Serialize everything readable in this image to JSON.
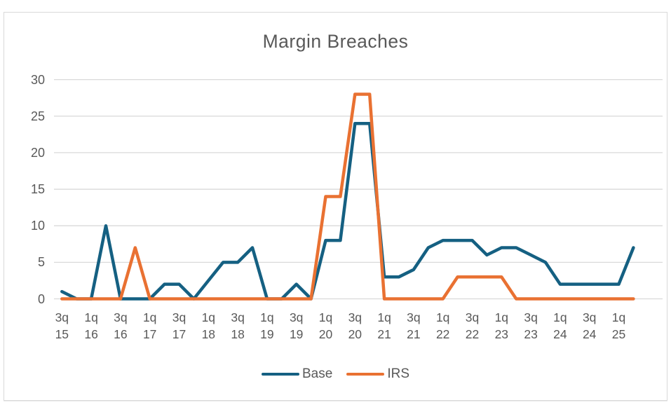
{
  "chart_data": {
    "type": "line",
    "title": "Margin Breaches",
    "categories": [
      "3q 15",
      "4q 15",
      "1q 16",
      "2q 16",
      "3q 16",
      "4q 16",
      "1q 17",
      "2q 17",
      "3q 17",
      "4q 17",
      "1q 18",
      "2q 18",
      "3q 18",
      "4q 18",
      "1q 19",
      "2q 19",
      "3q 19",
      "4q 19",
      "1q 20",
      "2q 20",
      "3q 20",
      "4q 20",
      "1q 21",
      "2q 21",
      "3q 21",
      "4q 21",
      "1q 22",
      "2q 22",
      "3q 22",
      "4q 22",
      "1q 23",
      "2q 23",
      "3q 23",
      "4q 23",
      "1q 24",
      "2q 24",
      "3q 24",
      "4q 24",
      "1q 25",
      "2q 25"
    ],
    "x_tick_labels": [
      "3q 15",
      "1q 16",
      "3q 16",
      "1q 17",
      "3q 17",
      "1q 18",
      "3q 18",
      "1q 19",
      "3q 19",
      "1q 20",
      "3q 20",
      "1q 21",
      "3q 21",
      "1q 22",
      "3q 22",
      "1q 23",
      "3q 23",
      "1q 24",
      "3q 24",
      "1q 25"
    ],
    "series": [
      {
        "name": "Base",
        "color": "#156082",
        "values": [
          1,
          0,
          0,
          10,
          0,
          0,
          0,
          2,
          2,
          0,
          2.5,
          5,
          5,
          7,
          0,
          0,
          2,
          0,
          8,
          8,
          24,
          24,
          3,
          3,
          4,
          7,
          8,
          8,
          8,
          6,
          7,
          7,
          6,
          5,
          2,
          2,
          2,
          2,
          2,
          7
        ]
      },
      {
        "name": "IRS",
        "color": "#E97132",
        "values": [
          0,
          0,
          0,
          0,
          0,
          7,
          0,
          0,
          0,
          0,
          0,
          0,
          0,
          0,
          0,
          0,
          0,
          0,
          14,
          14,
          28,
          28,
          0,
          0,
          0,
          0,
          0,
          3,
          3,
          3,
          3,
          0,
          0,
          0,
          0,
          0,
          0,
          0,
          0,
          0
        ]
      }
    ],
    "y_ticks": [
      0,
      5,
      10,
      15,
      20,
      25,
      30
    ],
    "ylim": [
      0,
      30
    ],
    "grid": "horizontal",
    "gridline_color": "#D9D9D9",
    "text_color": "#595959",
    "legend_position": "bottom"
  }
}
